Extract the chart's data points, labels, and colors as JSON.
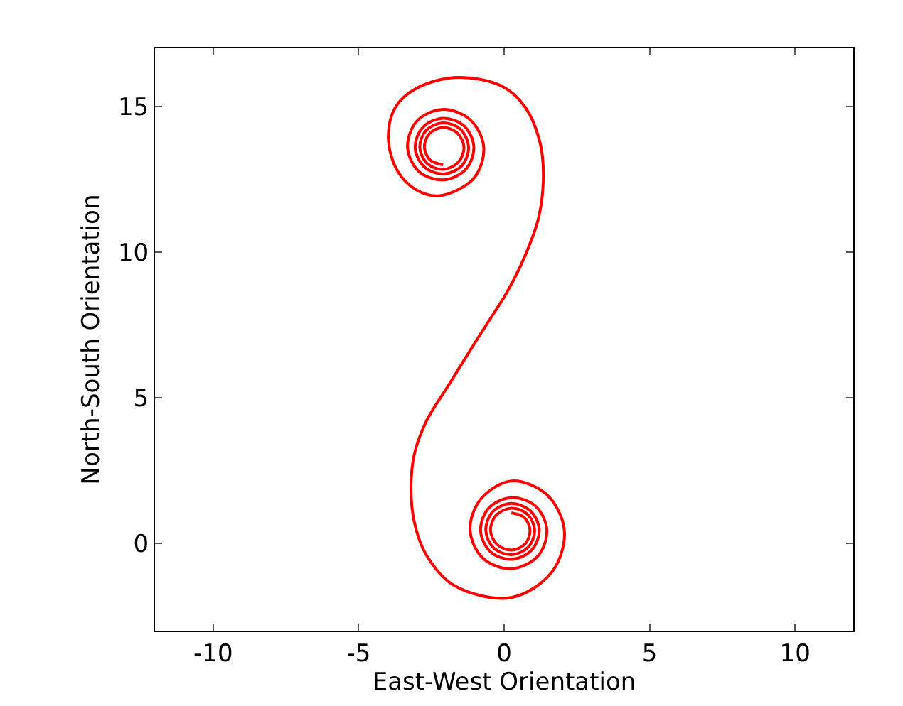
{
  "chart_data": {
    "type": "line",
    "xlabel": "East-West Orientation",
    "ylabel": "North-South Orientation",
    "xlim": [
      -12,
      12
    ],
    "xticks": [
      -10,
      -5,
      0,
      5,
      10
    ],
    "ylim": [
      -3,
      17
    ],
    "yticks": [
      0,
      5,
      10,
      15
    ],
    "marker": "none",
    "line_style": "solid",
    "series": [
      {
        "color": "#ff0000",
        "x": [
          0.25,
          0.69,
          0.89,
          0.72,
          0.25,
          -0.24,
          -0.47,
          -0.27,
          0.25,
          0.8,
          1.05,
          0.83,
          0.25,
          -0.36,
          -0.63,
          -0.39,
          0.25,
          0.91,
          1.21,
          0.94,
          0.25,
          -0.48,
          -0.81,
          -0.52,
          0.25,
          1.08,
          1.47,
          1.15,
          0.25,
          -0.72,
          -1.17,
          -0.81,
          0.25,
          1.47,
          2.07,
          1.66,
          0.25,
          -1.71,
          -2.68,
          -3.09,
          -3.2,
          -3.09,
          -2.68,
          -1.87,
          -1.06,
          -0.33,
          0.08,
          0.73,
          1.19,
          1.35,
          1.22,
          0.73,
          -0.08,
          -1.63,
          -3.02,
          -3.74,
          -3.98,
          -3.66,
          -3.0,
          -2.2,
          -1.04,
          -0.7,
          -1.16,
          -2.1,
          -3.0,
          -3.32,
          -2.93,
          -2.1,
          -1.33,
          -1.04,
          -1.37,
          -2.1,
          -2.79,
          -3.06,
          -2.76,
          -2.1,
          -1.46,
          -1.22,
          -1.49,
          -2.1,
          -2.68,
          -2.9,
          -2.65,
          -2.1,
          -1.58,
          -1.38,
          -1.61,
          -2.1,
          -2.57,
          -2.74,
          -2.54,
          -2.1
        ],
        "values": [
          1.05,
          0.89,
          0.45,
          -0.02,
          -0.23,
          -0.04,
          0.45,
          0.97,
          1.21,
          1.0,
          0.45,
          -0.13,
          -0.39,
          -0.16,
          0.45,
          1.09,
          1.37,
          1.11,
          0.45,
          -0.24,
          -0.55,
          -0.28,
          0.45,
          1.22,
          1.57,
          1.28,
          0.45,
          -0.45,
          -0.87,
          -0.52,
          0.45,
          1.51,
          2.14,
          1.67,
          0.45,
          -0.96,
          -1.86,
          -1.45,
          -0.39,
          0.75,
          1.9,
          3.04,
          4.18,
          5.49,
          6.8,
          7.94,
          8.59,
          9.9,
          11.2,
          12.68,
          13.82,
          14.97,
          15.7,
          16.0,
          15.62,
          14.97,
          13.9,
          12.78,
          12.13,
          11.94,
          12.54,
          13.6,
          14.54,
          14.9,
          14.5,
          13.6,
          12.77,
          12.48,
          12.83,
          13.6,
          14.33,
          14.6,
          14.29,
          13.6,
          12.94,
          12.68,
          12.96,
          13.6,
          14.21,
          14.44,
          14.18,
          13.6,
          13.05,
          12.84,
          13.08,
          13.6,
          14.09,
          14.28,
          14.07,
          13.6,
          13.16,
          13.0
        ]
      }
    ]
  }
}
